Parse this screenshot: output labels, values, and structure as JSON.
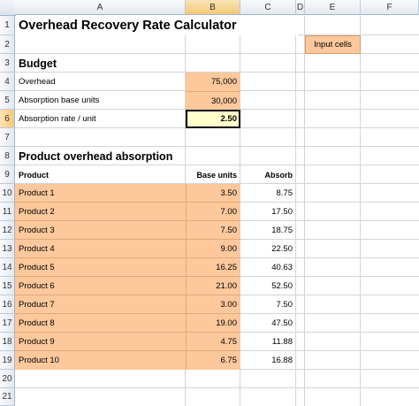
{
  "columns": [
    "A",
    "B",
    "C",
    "D",
    "E",
    "F"
  ],
  "rows": [
    "1",
    "2",
    "3",
    "4",
    "5",
    "6",
    "7",
    "8",
    "9",
    "10",
    "11",
    "12",
    "13",
    "14",
    "15",
    "16",
    "17",
    "18",
    "19",
    "20",
    "21"
  ],
  "title": "Overhead Recovery Rate Calculator",
  "legend_label": "Input cells",
  "budget": {
    "heading": "Budget",
    "overhead_label": "Overhead",
    "overhead_value": "75,000",
    "base_label": "Absorption base units",
    "base_value": "30,000",
    "rate_label": "Absorption rate / unit",
    "rate_value": "2.50"
  },
  "absorption": {
    "heading": "Product overhead absorption",
    "col_product": "Product",
    "col_base_units": "Base units",
    "col_absorb": "Absorb",
    "products": [
      {
        "name": "Product 1",
        "units": "3.50",
        "absorb": "8.75"
      },
      {
        "name": "Product 2",
        "units": "7.00",
        "absorb": "17.50"
      },
      {
        "name": "Product 3",
        "units": "7.50",
        "absorb": "18.75"
      },
      {
        "name": "Product 4",
        "units": "9.00",
        "absorb": "22.50"
      },
      {
        "name": "Product 5",
        "units": "16.25",
        "absorb": "40.63"
      },
      {
        "name": "Product 6",
        "units": "21.00",
        "absorb": "52.50"
      },
      {
        "name": "Product 7",
        "units": "3.00",
        "absorb": "7.50"
      },
      {
        "name": "Product 8",
        "units": "19.00",
        "absorb": "47.50"
      },
      {
        "name": "Product 9",
        "units": "4.75",
        "absorb": "11.88"
      },
      {
        "name": "Product 10",
        "units": "6.75",
        "absorb": "16.88"
      }
    ]
  },
  "colors": {
    "input_fill": "#fcc89c",
    "calc_fill": "#ffffcc",
    "header_active": "#f3c877",
    "gridline": "#d4d4d4"
  }
}
